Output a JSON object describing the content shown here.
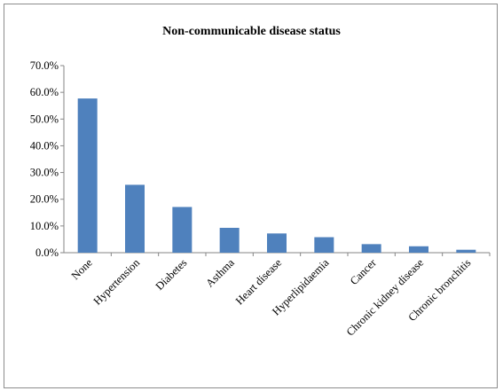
{
  "chart_data": {
    "type": "bar",
    "title": "Non-communicable disease status",
    "xlabel": "",
    "ylabel": "",
    "ylim": [
      0,
      70
    ],
    "yticks": [
      "0.0%",
      "10.0%",
      "20.0%",
      "30.0%",
      "40.0%",
      "50.0%",
      "60.0%",
      "70.0%"
    ],
    "categories": [
      "None",
      "Hypertension",
      "Diabetes",
      "Asthma",
      "Heart disease",
      "Hyperlipidaemia",
      "Cancer",
      "Chronic kidney disease",
      "Chronic bronchitis"
    ],
    "values": [
      57.7,
      25.4,
      17.1,
      9.3,
      7.2,
      5.8,
      3.2,
      2.4,
      1.1
    ],
    "bar_color": "#4f81bd",
    "grid": false,
    "legend": "none"
  }
}
